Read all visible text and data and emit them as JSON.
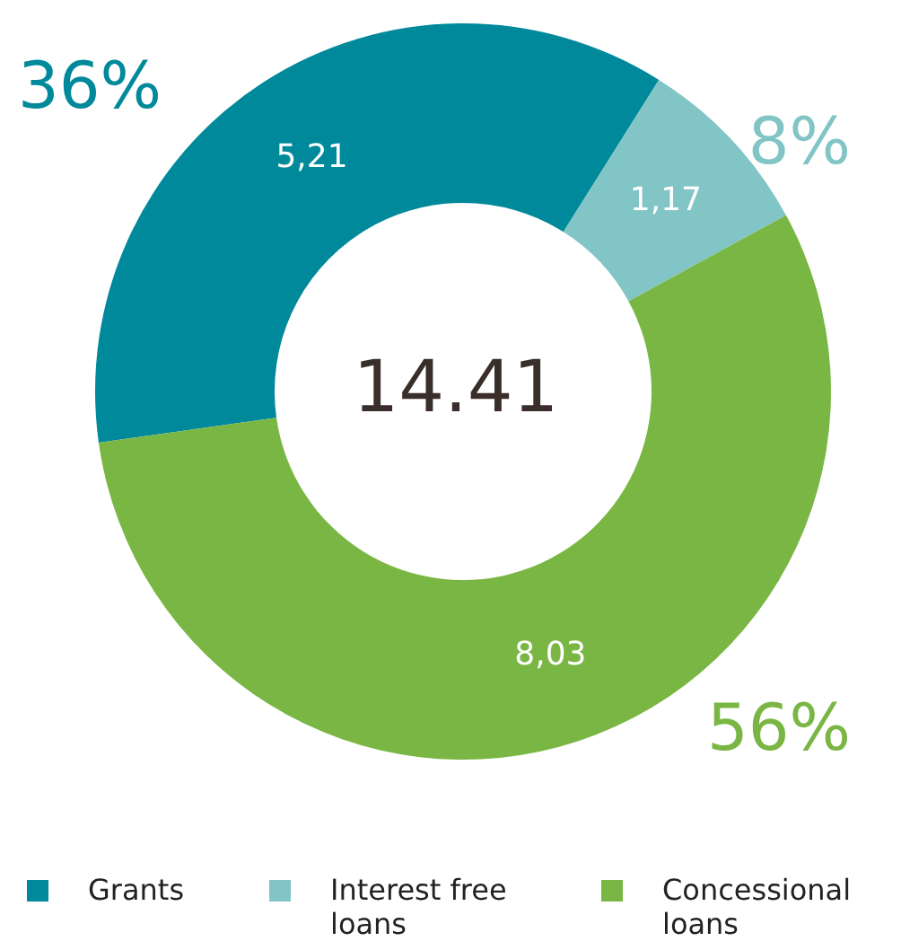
{
  "chart_data": {
    "type": "donut",
    "categories": [
      "Grants",
      "Interest free loans",
      "Concessional loans"
    ],
    "values": [
      5.21,
      1.17,
      8.03
    ],
    "value_labels": [
      "5,21",
      "1,17",
      "8,03"
    ],
    "colors": [
      "#00899b",
      "#82c5c6",
      "#7ab643"
    ],
    "annotations": [
      "36%",
      "8%",
      "56%",
      "14.41"
    ],
    "legend": "bottom"
  }
}
